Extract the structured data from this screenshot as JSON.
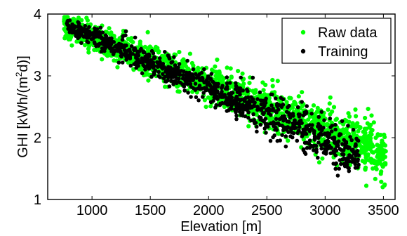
{
  "chart_data": {
    "type": "scatter",
    "xlabel": "Elevation [m]",
    "ylabel": {
      "text": "GHI  [kWh/(m",
      "superscript": "2",
      "tail": "d)]"
    },
    "xlim": [
      620,
      3600
    ],
    "ylim": [
      1,
      4
    ],
    "xticks": [
      1000,
      1500,
      2000,
      2500,
      3000,
      3500
    ],
    "yticks": [
      1,
      2,
      3,
      4
    ],
    "grid": false,
    "legend_position": "top-right",
    "series": [
      {
        "name": "Raw data",
        "color": "#00ff00",
        "band": {
          "x_start": 760,
          "x_end": 3520,
          "center_start": 3.8,
          "center_end": 1.72,
          "spread_start": 0.1,
          "spread_end": 0.2,
          "count": 1700
        },
        "points": [
          {
            "x": 760,
            "y": 3.88
          },
          {
            "x": 800,
            "y": 3.87
          },
          {
            "x": 850,
            "y": 3.86
          },
          {
            "x": 1030,
            "y": 3.78
          },
          {
            "x": 1290,
            "y": 3.72
          },
          {
            "x": 1600,
            "y": 3.32
          },
          {
            "x": 2300,
            "y": 2.95
          },
          {
            "x": 3500,
            "y": 1.75
          },
          {
            "x": 3520,
            "y": 1.78
          },
          {
            "x": 3350,
            "y": 1.68
          },
          {
            "x": 3100,
            "y": 1.55
          },
          {
            "x": 2950,
            "y": 1.6
          }
        ]
      },
      {
        "name": "Training",
        "color": "#000000",
        "band": {
          "x_start": 780,
          "x_end": 3290,
          "center_start": 3.82,
          "center_end": 1.72,
          "spread_start": 0.06,
          "spread_end": 0.2,
          "count": 950
        },
        "points": [
          {
            "x": 790,
            "y": 3.88
          },
          {
            "x": 880,
            "y": 3.87
          },
          {
            "x": 1290,
            "y": 3.72
          },
          {
            "x": 1370,
            "y": 3.62
          },
          {
            "x": 2380,
            "y": 2.97
          },
          {
            "x": 2640,
            "y": 2.62
          },
          {
            "x": 2800,
            "y": 2.58
          },
          {
            "x": 3180,
            "y": 1.62
          },
          {
            "x": 3280,
            "y": 1.62
          }
        ]
      }
    ]
  }
}
